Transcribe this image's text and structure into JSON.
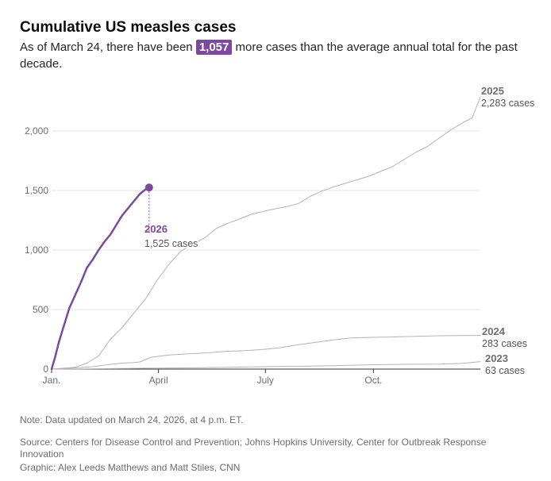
{
  "header": {
    "title": "Cumulative US measles cases",
    "subtitle_prefix": "As of March 24, there have been",
    "subtitle_highlight": "1,057",
    "subtitle_suffix": "more cases than the average annual total for the past decade."
  },
  "footer": {
    "note": "Note: Data updated on March 24, 2026, at 4 p.m. ET.",
    "source": "Source: Centers for Disease Control and Prevention; Johns Hopkins University, Center for Outbreak Response Innovation",
    "credit": "Graphic: Alex Leeds Matthews and Matt Stiles, CNN"
  },
  "colors": {
    "highlight": "#7b4a9e",
    "past_years": "#b3b3b3",
    "grid": "#e6e6e6",
    "axis": "#333333"
  },
  "chart_data": {
    "type": "line",
    "title": "Cumulative US measles cases",
    "xlabel": "",
    "ylabel": "",
    "x_unit": "day of year",
    "xlim": [
      0,
      365
    ],
    "ylim": [
      0,
      2300
    ],
    "y_ticks": [
      {
        "value": 0,
        "label": "0"
      },
      {
        "value": 500,
        "label": "500"
      },
      {
        "value": 1000,
        "label": "1,000"
      },
      {
        "value": 1500,
        "label": "1,500"
      },
      {
        "value": 2000,
        "label": "2,000"
      }
    ],
    "x_ticks": [
      {
        "value": 0,
        "label": "Jan."
      },
      {
        "value": 91,
        "label": "April"
      },
      {
        "value": 182,
        "label": "July"
      },
      {
        "value": 274,
        "label": "Oct."
      }
    ],
    "grid": "horizontal",
    "series": [
      {
        "name": "2023",
        "label_total": "63 cases",
        "highlight": false,
        "x": [
          0,
          30,
          60,
          90,
          120,
          150,
          180,
          210,
          240,
          270,
          300,
          330,
          350,
          365
        ],
        "y": [
          0,
          2,
          5,
          8,
          11,
          15,
          20,
          24,
          28,
          36,
          40,
          42,
          48,
          63
        ]
      },
      {
        "name": "2024",
        "label_total": "283 cases",
        "highlight": false,
        "x": [
          0,
          20,
          35,
          50,
          60,
          70,
          75,
          85,
          100,
          120,
          135,
          150,
          165,
          180,
          195,
          210,
          225,
          240,
          255,
          270,
          290,
          310,
          330,
          350,
          365
        ],
        "y": [
          0,
          10,
          20,
          40,
          50,
          55,
          60,
          100,
          118,
          130,
          138,
          150,
          155,
          165,
          180,
          205,
          225,
          245,
          262,
          266,
          270,
          275,
          280,
          282,
          283
        ]
      },
      {
        "name": "2025",
        "label_total": "2,283 cases",
        "highlight": false,
        "x": [
          0,
          20,
          30,
          40,
          50,
          60,
          70,
          80,
          90,
          100,
          110,
          120,
          130,
          140,
          150,
          160,
          170,
          180,
          190,
          200,
          210,
          220,
          230,
          240,
          250,
          260,
          270,
          280,
          290,
          300,
          310,
          320,
          330,
          340,
          350,
          358,
          365
        ],
        "y": [
          0,
          15,
          50,
          110,
          250,
          350,
          470,
          590,
          750,
          880,
          990,
          1050,
          1100,
          1180,
          1225,
          1260,
          1300,
          1325,
          1345,
          1365,
          1390,
          1450,
          1495,
          1530,
          1560,
          1590,
          1620,
          1660,
          1700,
          1760,
          1820,
          1870,
          1940,
          2010,
          2070,
          2110,
          2283
        ]
      },
      {
        "name": "2026",
        "label_total": "1,525 cases",
        "highlight": true,
        "x": [
          0,
          3,
          6,
          10,
          15,
          20,
          25,
          30,
          35,
          40,
          45,
          50,
          55,
          60,
          65,
          70,
          75,
          80,
          83
        ],
        "y": [
          0,
          100,
          220,
          350,
          510,
          620,
          730,
          850,
          920,
          1000,
          1070,
          1130,
          1210,
          1290,
          1350,
          1410,
          1470,
          1510,
          1525
        ]
      }
    ]
  }
}
